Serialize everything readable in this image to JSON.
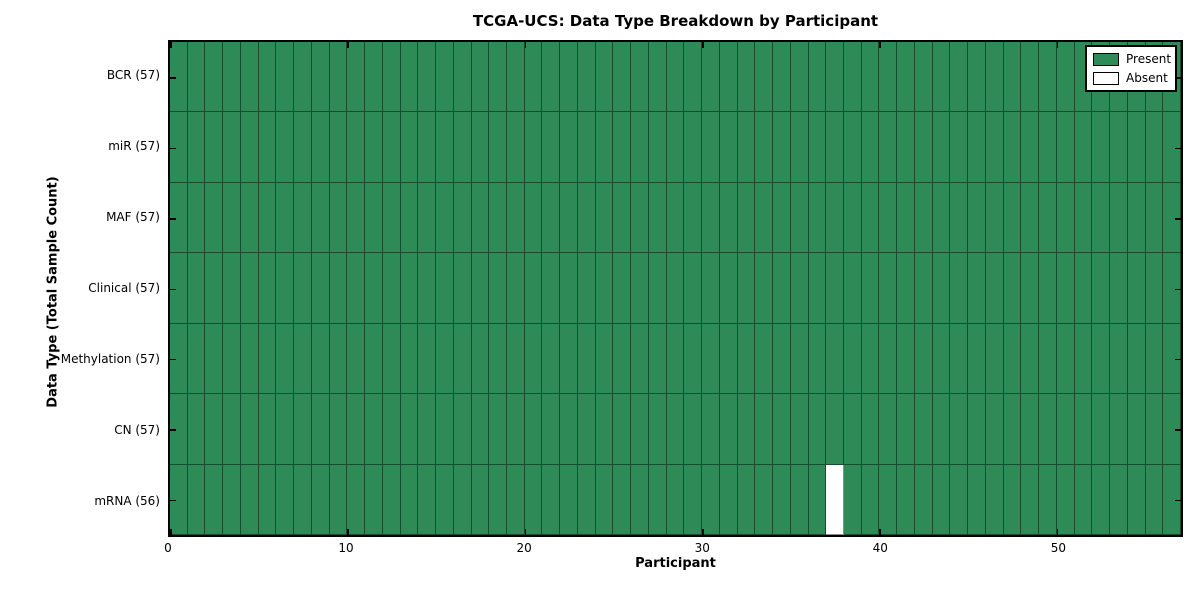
{
  "figure": {
    "title": "TCGA-UCS: Data Type Breakdown by Participant",
    "xlabel": "Participant",
    "ylabel": "Data Type (Total Sample Count)"
  },
  "legend": {
    "entries": [
      {
        "label": "Present",
        "color": "#2e8b57"
      },
      {
        "label": "Absent",
        "color": "#ffffff"
      }
    ]
  },
  "chart_data": {
    "type": "heatmap",
    "title": "TCGA-UCS: Data Type Breakdown by Participant",
    "xlabel": "Participant",
    "ylabel": "Data Type (Total Sample Count)",
    "n_participants": 57,
    "x_range": [
      0,
      57
    ],
    "x_ticks": [
      0,
      10,
      20,
      30,
      40,
      50
    ],
    "categories": [
      "BCR (57)",
      "miR (57)",
      "MAF (57)",
      "Clinical (57)",
      "Methylation (57)",
      "CN (57)",
      "mRNA (56)"
    ],
    "row_counts": [
      57,
      57,
      57,
      57,
      57,
      57,
      56
    ],
    "absent_cells": [
      {
        "row_label": "mRNA (56)",
        "row_index": 6,
        "participant": 37
      }
    ],
    "legend_position": "upper right",
    "colors": {
      "present": "#2e8b57",
      "absent": "#ffffff",
      "cell_edge": "rgba(0,0,0,0.45)",
      "frame": "#000000"
    }
  }
}
